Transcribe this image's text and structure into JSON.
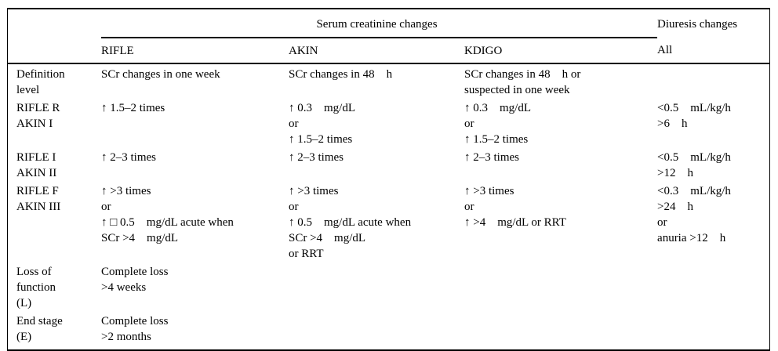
{
  "table": {
    "header": {
      "serum_group": "Serum creatinine changes",
      "diuresis_group": "Diuresis changes",
      "col_rifle": "RIFLE",
      "col_akin": "AKIN",
      "col_kdigo": "KDIGO",
      "col_all": "All"
    },
    "rows": [
      {
        "label": "Definition\nlevel",
        "rifle": "SCr changes in one week",
        "akin": "SCr changes in 48    h",
        "kdigo": "SCr changes in 48    h or\nsuspected in one week",
        "diuresis": ""
      },
      {
        "label": "RIFLE R\nAKIN I",
        "rifle": "↑ 1.5–2 times",
        "akin": "↑ 0.3    mg/dL\nor\n↑ 1.5–2 times",
        "kdigo": "↑ 0.3    mg/dL\nor\n↑ 1.5–2 times",
        "diuresis": "<0.5    mL/kg/h\n>6    h"
      },
      {
        "label": "RIFLE I\nAKIN II",
        "rifle": "↑ 2–3 times",
        "akin": "↑ 2–3 times",
        "kdigo": "↑ 2–3 times",
        "diuresis": "<0.5    mL/kg/h\n>12    h"
      },
      {
        "label": "RIFLE F\nAKIN III",
        "rifle": "↑ >3 times\nor\n↑ □ 0.5    mg/dL acute when\nSCr >4    mg/dL",
        "akin": "↑ >3 times\nor\n↑ 0.5    mg/dL acute when\nSCr >4    mg/dL\nor RRT",
        "kdigo": "↑ >3 times\nor\n↑ >4    mg/dL or RRT",
        "diuresis": "<0.3    mL/kg/h\n>24    h\nor\nanuria >12    h"
      },
      {
        "label": "Loss of\nfunction\n(L)",
        "rifle": "Complete loss\n>4 weeks",
        "akin": "",
        "kdigo": "",
        "diuresis": ""
      },
      {
        "label": "End stage\n(E)",
        "rifle": "Complete loss\n>2 months",
        "akin": "",
        "kdigo": "",
        "diuresis": ""
      }
    ]
  },
  "colors": {
    "text": "#000000",
    "border": "#000000",
    "background": "#ffffff"
  }
}
